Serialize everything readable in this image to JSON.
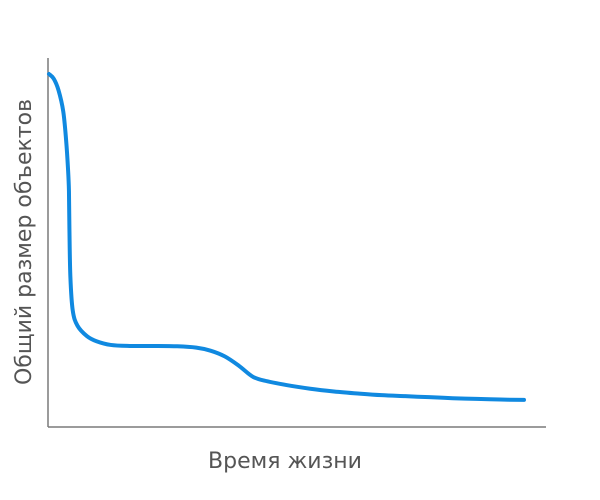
{
  "chart_data": {
    "type": "line",
    "title": "",
    "xlabel": "Время жизни",
    "ylabel": "Общий размер объектов",
    "xlim": [
      0,
      100
    ],
    "ylim": [
      0,
      100
    ],
    "grid": false,
    "ticks_visible": false,
    "series": [
      {
        "color": "#1089e0",
        "x": [
          0,
          1,
          2,
          3,
          3.6,
          4,
          4.2,
          4.3,
          4.5,
          5,
          6,
          8,
          10,
          13,
          17,
          22,
          27,
          31,
          34,
          37,
          40,
          43,
          46,
          50,
          55,
          60,
          65,
          70,
          75,
          80,
          85,
          90,
          95,
          100
        ],
        "y": [
          100,
          98.6,
          95.2,
          88.9,
          80.4,
          71.9,
          65.3,
          54.0,
          39.8,
          29.8,
          25.3,
          22.2,
          20.7,
          19.6,
          19.3,
          19.3,
          19.2,
          18.8,
          17.9,
          16.2,
          13.4,
          10.1,
          8.8,
          7.7,
          6.6,
          5.8,
          5.2,
          4.7,
          4.4,
          4.1,
          3.8,
          3.6,
          3.4,
          3.3
        ]
      }
    ]
  }
}
